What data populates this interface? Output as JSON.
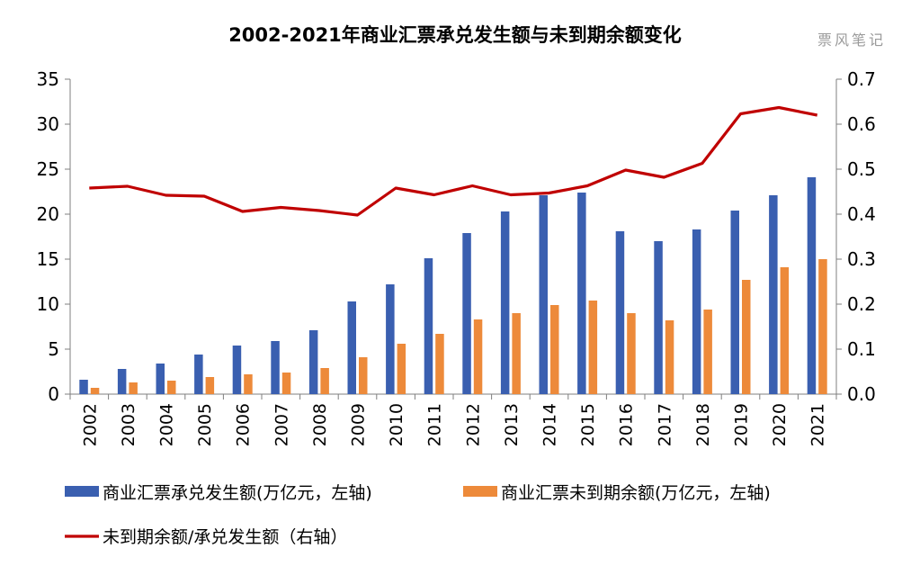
{
  "watermark": "票风笔记",
  "chart_data": {
    "type": "bar",
    "title": "2002-2021年商业汇票承兑发生额与未到期余额变化",
    "categories": [
      "2002",
      "2003",
      "2004",
      "2005",
      "2006",
      "2007",
      "2008",
      "2009",
      "2010",
      "2011",
      "2012",
      "2013",
      "2014",
      "2015",
      "2016",
      "2017",
      "2018",
      "2019",
      "2020",
      "2021"
    ],
    "ylim": [
      0,
      35
    ],
    "y_ticks": [
      "0",
      "5",
      "10",
      "15",
      "20",
      "25",
      "30",
      "35"
    ],
    "y2lim": [
      0,
      0.7
    ],
    "y2_ticks": [
      "0.0",
      "0.1",
      "0.2",
      "0.3",
      "0.4",
      "0.5",
      "0.6",
      "0.7"
    ],
    "grid": false,
    "legend_position": "bottom",
    "series": [
      {
        "name": "商业汇票承兑发生额(万亿元，左轴)",
        "type": "bar",
        "axis": "left",
        "color": "#3a5fb0",
        "values": [
          1.6,
          2.8,
          3.4,
          4.4,
          5.4,
          5.9,
          7.1,
          10.3,
          12.2,
          15.1,
          17.9,
          20.3,
          22.1,
          22.4,
          18.1,
          17.0,
          18.3,
          20.4,
          22.1,
          24.1
        ]
      },
      {
        "name": "商业汇票未到期余额(万亿元，左轴)",
        "type": "bar",
        "axis": "left",
        "color": "#ed8a3a",
        "values": [
          0.7,
          1.3,
          1.5,
          1.9,
          2.2,
          2.4,
          2.9,
          4.1,
          5.6,
          6.7,
          8.3,
          9.0,
          9.9,
          10.4,
          9.0,
          8.2,
          9.4,
          12.7,
          14.1,
          15.0
        ]
      },
      {
        "name": "未到期余额/承兑发生额（右轴）",
        "type": "line",
        "axis": "right",
        "color": "#c00000",
        "values": [
          0.458,
          0.462,
          0.442,
          0.44,
          0.406,
          0.415,
          0.408,
          0.398,
          0.458,
          0.443,
          0.463,
          0.443,
          0.447,
          0.463,
          0.498,
          0.482,
          0.513,
          0.623,
          0.637,
          0.62
        ]
      }
    ]
  }
}
